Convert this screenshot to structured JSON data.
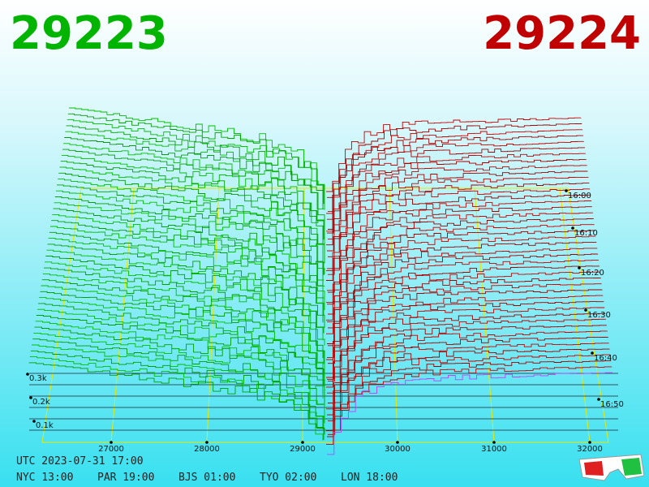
{
  "header": {
    "bid": "29223",
    "ask": "29224"
  },
  "x_axis": {
    "labels": [
      "27000",
      "28000",
      "29000",
      "30000",
      "31000",
      "32000"
    ]
  },
  "depth_axis": {
    "labels": [
      "0.3k",
      "0.2k",
      "0.1k"
    ]
  },
  "time_axis": {
    "labels": [
      "16:00",
      "16:10",
      "16:20",
      "16:30",
      "16:40",
      "16:50"
    ]
  },
  "footer": {
    "utc": "UTC 2023-07-31 17:00",
    "zones": [
      "NYC 13:00",
      "PAR 19:00",
      "BJS 01:00",
      "TYO 02:00",
      "LON 18:00"
    ]
  }
}
